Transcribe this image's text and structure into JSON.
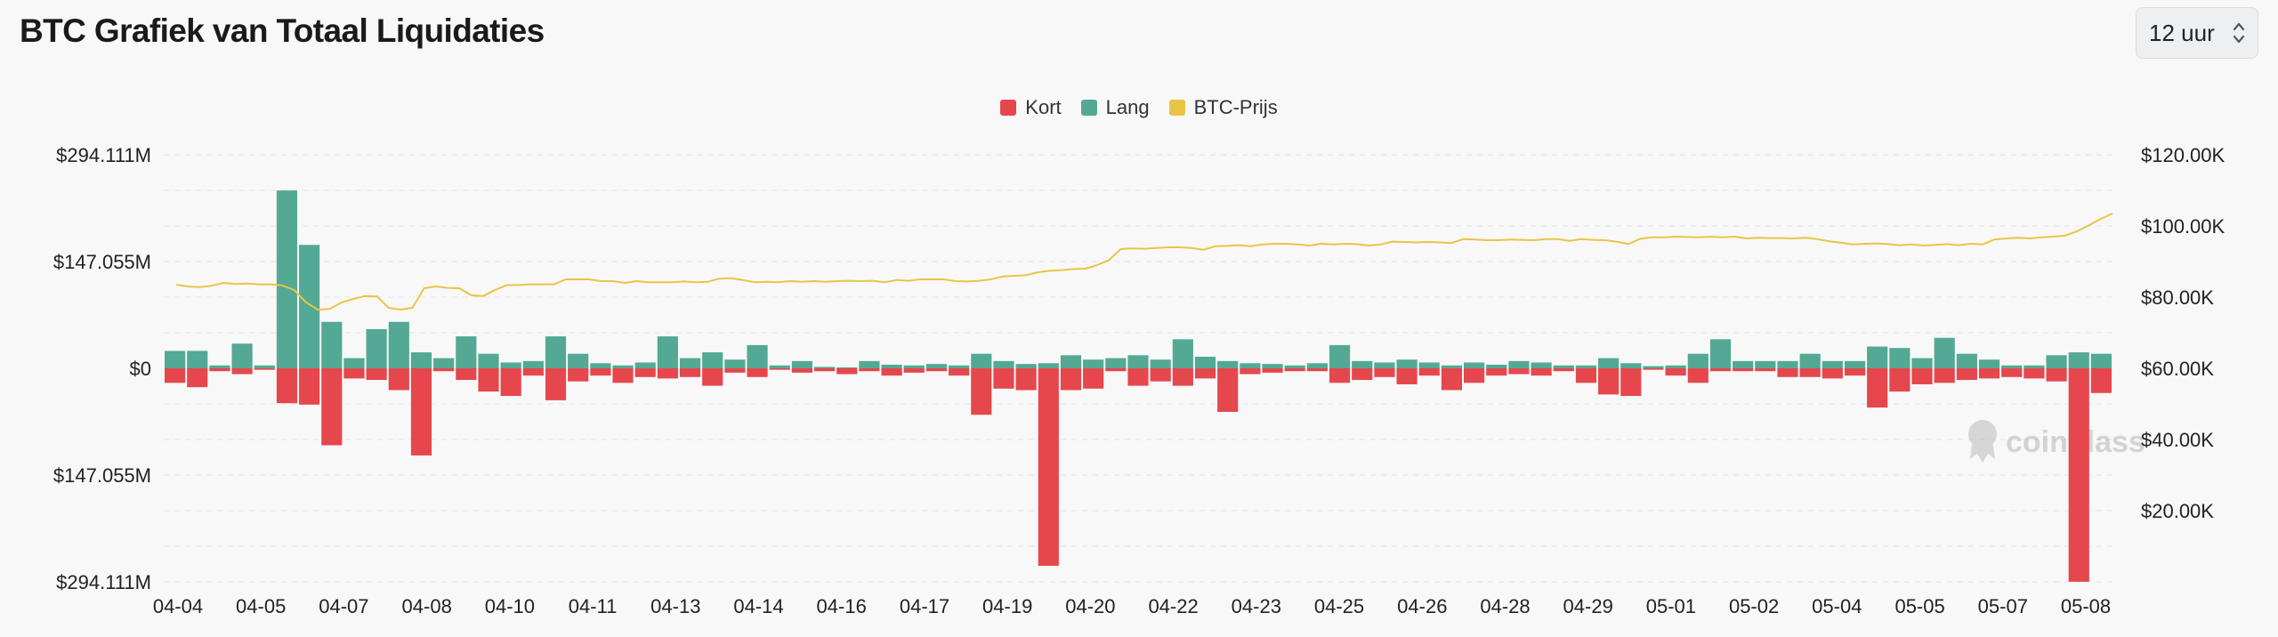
{
  "header": {
    "title": "BTC Grafiek van Totaal Liquidaties",
    "interval": "12 uur"
  },
  "colors": {
    "short": "#e5474d",
    "long": "#53a994",
    "price": "#e8c547",
    "grid": "#e4e4e4"
  },
  "watermark": "coinglass",
  "chart_data": {
    "type": "bar",
    "title": "BTC Grafiek van Totaal Liquidaties",
    "legend": {
      "position": "top-center",
      "entries": [
        "Kort",
        "Lang",
        "BTC-Prijs"
      ]
    },
    "grid": true,
    "left_axis": {
      "ylim": [
        -294.111,
        294.111
      ],
      "unit": "M",
      "ticks": [
        294.111,
        147.055,
        0,
        -147.055,
        -294.111
      ],
      "tick_labels": [
        "$294.111M",
        "$147.055M",
        "$0",
        "$147.055M",
        "$294.111M"
      ]
    },
    "right_axis": {
      "ylim": [
        0,
        120000
      ],
      "ticks": [
        120000,
        100000,
        80000,
        60000,
        40000,
        20000
      ],
      "tick_labels": [
        "$120.00K",
        "$100.00K",
        "$80.00K",
        "$60.00K",
        "$40.00K",
        "$20.00K"
      ]
    },
    "x_tick_labels": [
      "04-04",
      "04-05",
      "04-07",
      "04-08",
      "04-10",
      "04-11",
      "04-13",
      "04-14",
      "04-16",
      "04-17",
      "04-19",
      "04-20",
      "04-22",
      "04-23",
      "04-25",
      "04-26",
      "04-28",
      "04-29",
      "05-01",
      "05-02",
      "05-04",
      "05-05",
      "05-07",
      "05-08"
    ],
    "series": [
      {
        "name": "Lang",
        "values": [
          24,
          24,
          4,
          34,
          4,
          245,
          170,
          64,
          14,
          54,
          64,
          22,
          14,
          44,
          20,
          8,
          10,
          44,
          20,
          7,
          4,
          8,
          44,
          14,
          22,
          12,
          32,
          4,
          10,
          2,
          1,
          10,
          5,
          4,
          6,
          4,
          20,
          10,
          6,
          7,
          18,
          12,
          14,
          18,
          12,
          40,
          16,
          10,
          7,
          6,
          4,
          7,
          32,
          10,
          8,
          12,
          8,
          4,
          8,
          5,
          10,
          8,
          4,
          4,
          14,
          7,
          3,
          4,
          20,
          40,
          10,
          10,
          10,
          20,
          10,
          10,
          30,
          28,
          14,
          42,
          20,
          12,
          4,
          4,
          18,
          22,
          20
        ],
        "unit": "M"
      },
      {
        "name": "Kort",
        "values": [
          20,
          26,
          4,
          8,
          2,
          48,
          50,
          106,
          14,
          16,
          30,
          120,
          4,
          16,
          32,
          38,
          10,
          44,
          18,
          10,
          20,
          12,
          14,
          12,
          24,
          6,
          12,
          2,
          6,
          4,
          8,
          4,
          10,
          6,
          4,
          10,
          64,
          28,
          30,
          272,
          30,
          28,
          4,
          24,
          18,
          24,
          14,
          60,
          8,
          6,
          4,
          4,
          20,
          16,
          12,
          22,
          10,
          30,
          20,
          10,
          8,
          10,
          4,
          20,
          36,
          38,
          2,
          10,
          20,
          4,
          4,
          4,
          12,
          12,
          14,
          10,
          54,
          32,
          22,
          20,
          16,
          14,
          12,
          14,
          18,
          294,
          34
        ],
        "unit": "M"
      },
      {
        "name": "BTC-Prijs",
        "values": [
          83500,
          83000,
          82800,
          83200,
          84000,
          83700,
          83800,
          83600,
          83600,
          83300,
          82000,
          78500,
          76500,
          76700,
          78500,
          79500,
          80300,
          80200,
          77000,
          76500,
          77000,
          82500,
          83000,
          82600,
          82500,
          80500,
          80300,
          82000,
          83400,
          83400,
          83600,
          83600,
          83600,
          85000,
          85000,
          85000,
          84500,
          84500,
          84000,
          84500,
          84200,
          84200,
          84200,
          84400,
          84200,
          84300,
          85200,
          85300,
          84800,
          84200,
          84300,
          84200,
          84500,
          84300,
          84500,
          84300,
          84500,
          84600,
          84500,
          84600,
          84200,
          84800,
          84600,
          85000,
          85000,
          85000,
          84500,
          84400,
          84600,
          85000,
          85800,
          86000,
          86200,
          87000,
          87400,
          87600,
          87900,
          88000,
          89000,
          90400,
          93500,
          93700,
          93600,
          93800,
          94000,
          94000,
          93800,
          93300,
          94300,
          94400,
          94600,
          94300,
          94800,
          95000,
          95000,
          94800,
          94500,
          95000,
          94800,
          95000,
          94900,
          94500,
          94800,
          95600,
          95500,
          95400,
          95500,
          95400,
          95200,
          96300,
          96200,
          96000,
          96000,
          96200,
          96100,
          96000,
          96300,
          96300,
          95800,
          96300,
          96100,
          96000,
          95600,
          94900,
          96400,
          96800,
          96800,
          97000,
          96900,
          96800,
          97000,
          96800,
          97000,
          96500,
          96700,
          96600,
          96600,
          96500,
          96700,
          96300,
          95700,
          95300,
          94800,
          95000,
          95100,
          94900,
          94600,
          94800,
          94500,
          94700,
          94900,
          94600,
          95000,
          94800,
          96200,
          96500,
          96700,
          96500,
          96800,
          97000,
          97300,
          98500,
          100200,
          102000,
          103500
        ],
        "unit": "USD"
      }
    ]
  }
}
